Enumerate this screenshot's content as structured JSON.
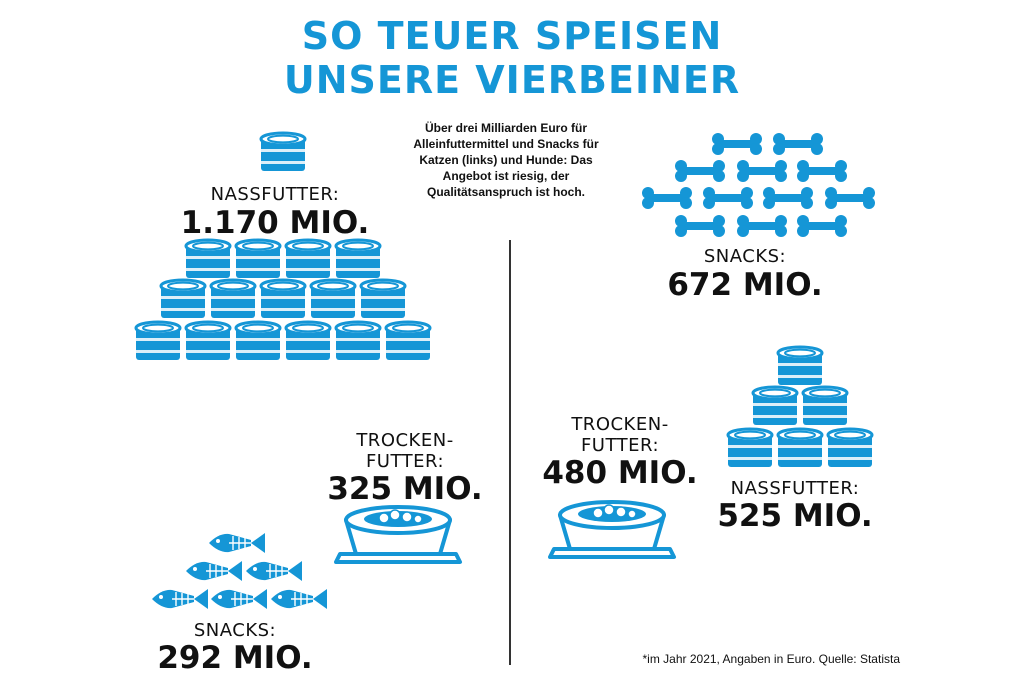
{
  "title": {
    "line1": "SO TEUER SPEISEN",
    "line2": "UNSERE VIERBEINER"
  },
  "intro": "Über drei Milliarden Euro für Alleinfuttermittel und Snacks für Katzen (links) und Hunde: Das Angebot ist riesig, der Qualitätsanspruch ist hoch.",
  "colors": {
    "accent": "#1596d6",
    "text": "#111111"
  },
  "cats": {
    "nassfutter": {
      "label": "NASSFUTTER:",
      "value": "1.170 MIO.",
      "icon": "can-icon"
    },
    "trockenfutter": {
      "label_line1": "TROCKEN-",
      "label_line2": "FUTTER:",
      "value": "325 MIO.",
      "icon": "bowl-icon"
    },
    "snacks": {
      "label": "SNACKS:",
      "value": "292 MIO.",
      "icon": "fish-bone-icon"
    }
  },
  "dogs": {
    "snacks": {
      "label": "SNACKS:",
      "value": "672 MIO.",
      "icon": "bone-icon"
    },
    "trockenfutter": {
      "label_line1": "TROCKEN-",
      "label_line2": "FUTTER:",
      "value": "480 MIO.",
      "icon": "bowl-icon"
    },
    "nassfutter": {
      "label": "NASSFUTTER:",
      "value": "525 MIO.",
      "icon": "can-icon"
    }
  },
  "footnote": "*im Jahr 2021, Angaben in Euro. Quelle: Statista"
}
